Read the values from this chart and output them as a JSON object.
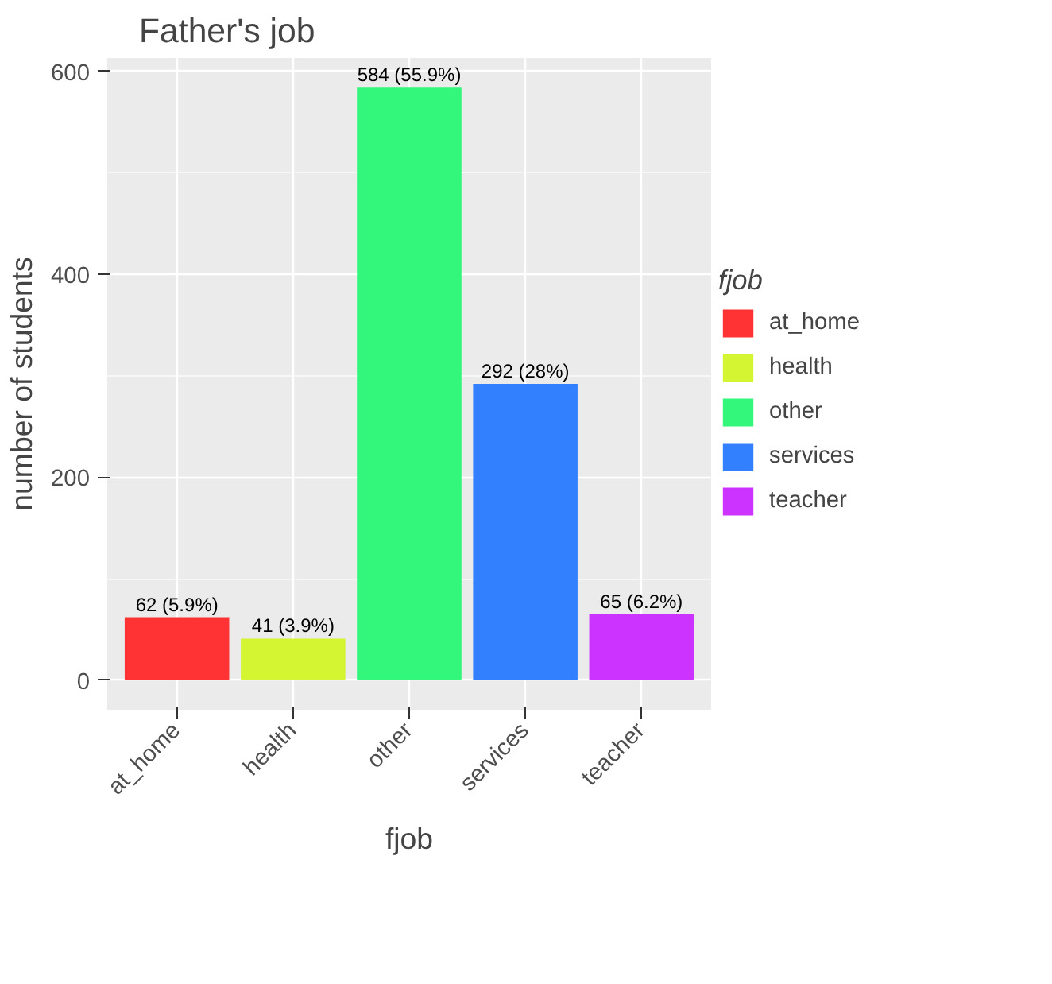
{
  "chart_data": {
    "type": "bar",
    "title": "Father's job",
    "xlabel": "fjob",
    "ylabel": "number of students",
    "legend_title": "fjob",
    "categories": [
      "at_home",
      "health",
      "other",
      "services",
      "teacher"
    ],
    "series": [
      {
        "name": "at_home",
        "color": "#ff3333",
        "values": [
          62,
          null,
          null,
          null,
          null
        ],
        "value_labels": [
          "62 (5.9%)",
          null,
          null,
          null,
          null
        ]
      },
      {
        "name": "health",
        "color": "#d4f532",
        "values": [
          null,
          41,
          null,
          null,
          null
        ],
        "value_labels": [
          null,
          "41 (3.9%)",
          null,
          null,
          null
        ]
      },
      {
        "name": "other",
        "color": "#33f77a",
        "values": [
          null,
          null,
          584,
          null,
          null
        ],
        "value_labels": [
          null,
          null,
          "584 (55.9%)",
          null,
          null
        ]
      },
      {
        "name": "services",
        "color": "#3380ff",
        "values": [
          null,
          null,
          null,
          292,
          null
        ],
        "value_labels": [
          null,
          null,
          null,
          "292 (28%)",
          null
        ]
      },
      {
        "name": "teacher",
        "color": "#cc33ff",
        "values": [
          null,
          null,
          null,
          null,
          65
        ],
        "value_labels": [
          null,
          null,
          null,
          null,
          "65 (6.2%)"
        ]
      }
    ],
    "ylim": [
      -29.2,
      613.2
    ],
    "yticks": [
      0,
      200,
      400,
      600
    ],
    "grid": true,
    "legend": "right"
  }
}
